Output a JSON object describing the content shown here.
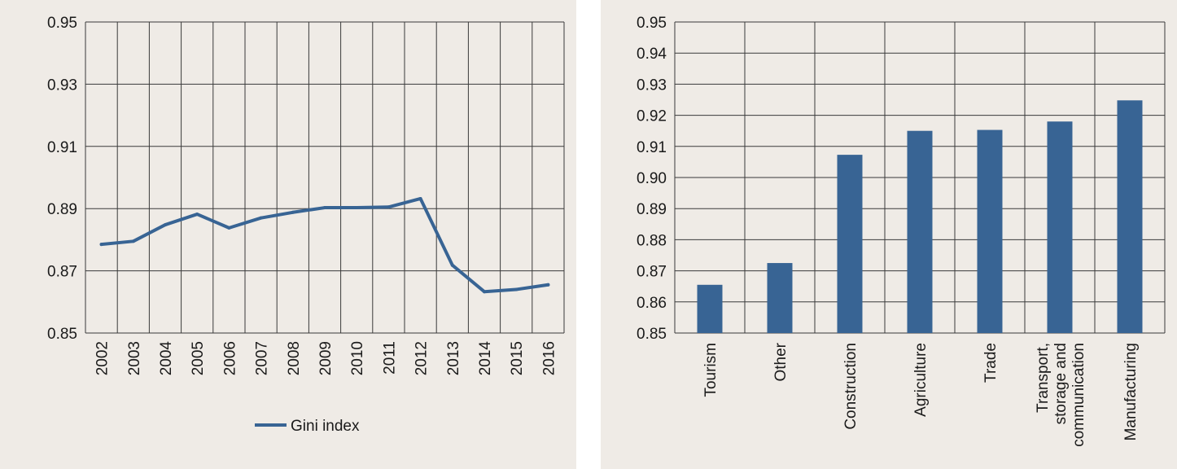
{
  "colors": {
    "series": "#386494",
    "grid": "#3a3a3a",
    "panel_bg": "#efebe6"
  },
  "chart_data": [
    {
      "type": "line",
      "x": [
        "2002",
        "2003",
        "2004",
        "2005",
        "2006",
        "2007",
        "2008",
        "2009",
        "2010",
        "2011",
        "2012",
        "2013",
        "2014",
        "2015",
        "2016"
      ],
      "series": [
        {
          "name": "Gini index",
          "values": [
            0.8785,
            0.8795,
            0.8848,
            0.8882,
            0.8838,
            0.887,
            0.8888,
            0.8903,
            0.8903,
            0.8905,
            0.8932,
            0.8718,
            0.8633,
            0.864,
            0.8655
          ]
        }
      ],
      "ylim": [
        0.85,
        0.95
      ],
      "yticks": [
        "0.85",
        "0.87",
        "0.89",
        "0.91",
        "0.93",
        "0.95"
      ],
      "grid": true,
      "legend": "bottom"
    },
    {
      "type": "bar",
      "categories": [
        "Tourism",
        "Other",
        "Construction",
        "Agriculture",
        "Trade",
        "Transport,\nstorage and\ncommunication",
        "Manufacturing"
      ],
      "values": [
        0.8655,
        0.8725,
        0.9073,
        0.915,
        0.9153,
        0.918,
        0.9248
      ],
      "ylim": [
        0.85,
        0.95
      ],
      "yticks": [
        "0.85",
        "0.86",
        "0.87",
        "0.88",
        "0.89",
        "0.90",
        "0.91",
        "0.92",
        "0.93",
        "0.94",
        "0.95"
      ],
      "grid": true
    }
  ]
}
